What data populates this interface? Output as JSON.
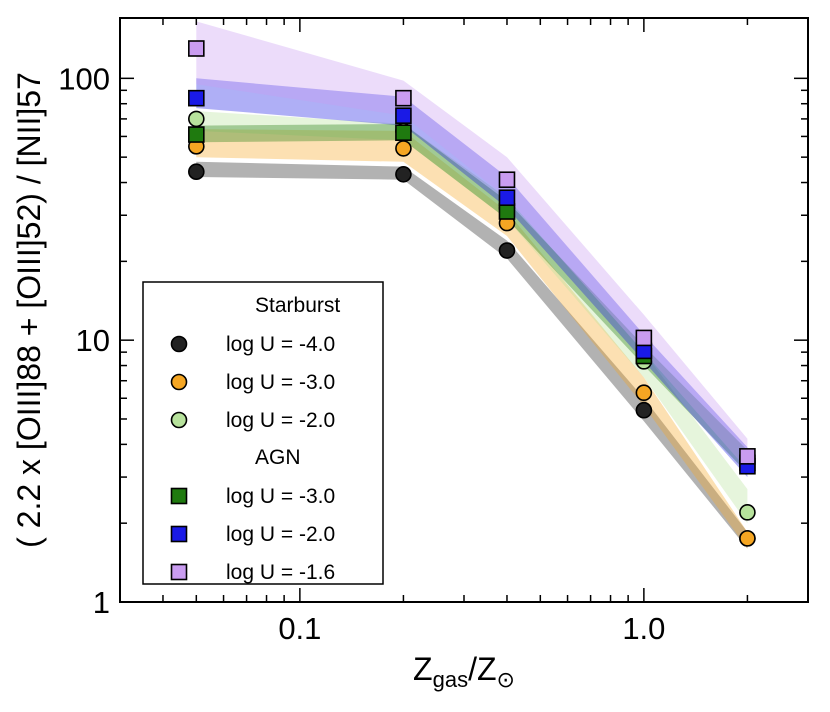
{
  "chart_data": {
    "type": "scatter",
    "x_scale": "log",
    "y_scale": "log",
    "xlim": [
      0.03,
      3.0
    ],
    "ylim": [
      1,
      170
    ],
    "x_ticks": [
      {
        "value": 0.1,
        "label": "0.1"
      },
      {
        "value": 1.0,
        "label": "1.0"
      }
    ],
    "y_ticks": [
      {
        "value": 1,
        "label": "1"
      },
      {
        "value": 10,
        "label": "10"
      },
      {
        "value": 100,
        "label": "100"
      }
    ],
    "ylabel": "( 2.2 x [OIII]88 + [OIII]52) / [NII]57",
    "xlabel_parts": {
      "base": "Z",
      "sub1": "gas",
      "slash": "/Z",
      "sub2": "⊙"
    },
    "x": [
      0.05,
      0.2,
      0.4,
      1.0,
      2.0
    ],
    "legend": {
      "position": "lower-left",
      "groups": [
        {
          "title": "Starburst",
          "series_indices": [
            0,
            1,
            2
          ]
        },
        {
          "title": "AGN",
          "series_indices": [
            3,
            4,
            5
          ]
        }
      ]
    },
    "series": [
      {
        "name": "log U = -4.0",
        "group": "Starburst",
        "marker": "circle",
        "color": "#222222",
        "values": [
          44,
          43,
          22,
          5.4,
          1.75
        ],
        "band_low": [
          42,
          41,
          20.5,
          4.9,
          1.6
        ],
        "band_high": [
          48,
          46,
          24,
          6.0,
          1.85
        ]
      },
      {
        "name": "log U = -3.0",
        "group": "Starburst",
        "marker": "circle",
        "color": "#f5a623",
        "values": [
          55,
          54,
          28,
          6.3,
          1.75
        ],
        "band_low": [
          50,
          48,
          25,
          5.6,
          1.6
        ],
        "band_high": [
          64,
          63,
          31,
          7.2,
          1.85
        ]
      },
      {
        "name": "log U = -2.0",
        "group": "Starburst",
        "marker": "circle",
        "color": "#b7e29c",
        "values": [
          70,
          63,
          32,
          8.3,
          2.2
        ],
        "band_low": [
          63,
          58,
          29,
          7.2,
          2.0
        ],
        "band_high": [
          75,
          67,
          35,
          9.0,
          2.7
        ]
      },
      {
        "name": "log U = -3.0",
        "group": "AGN",
        "marker": "square",
        "color": "#1f7a0f",
        "values": [
          61,
          62,
          31,
          8.7,
          3.4
        ],
        "band_low": [
          57,
          58,
          29,
          8.0,
          3.1
        ],
        "band_high": [
          66,
          67,
          34,
          9.5,
          3.8
        ]
      },
      {
        "name": "log U = -2.0",
        "group": "AGN",
        "marker": "square",
        "color": "#1a1ae6",
        "values": [
          84,
          72,
          35,
          9.1,
          3.3
        ],
        "band_low": [
          77,
          66,
          32,
          8.3,
          3.0
        ],
        "band_high": [
          100,
          85,
          42,
          10.5,
          3.9
        ]
      },
      {
        "name": "log U = -1.6",
        "group": "AGN",
        "marker": "square",
        "color": "#c99cf0",
        "values": [
          130,
          84,
          41,
          10.2,
          3.6
        ],
        "band_low": [
          95,
          72,
          35,
          9.0,
          3.2
        ],
        "band_high": [
          165,
          98,
          50,
          12.5,
          4.2
        ]
      }
    ]
  }
}
